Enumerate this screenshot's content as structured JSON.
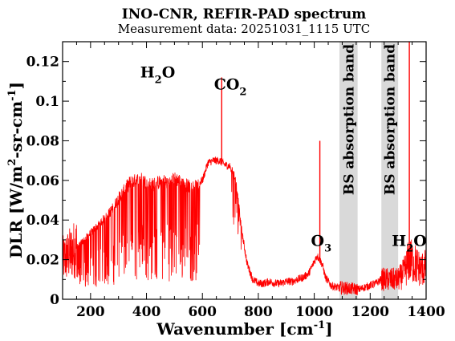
{
  "chart_data": {
    "type": "line",
    "title": "INO-CNR, REFIR-PAD spectrum",
    "subtitle": "Measurement data: 20251031_1115 UTC",
    "xlabel": "Wavenumber [cm-1]",
    "ylabel": "DLR [W/m2-sr-cm-1]",
    "xlim": [
      100,
      1400
    ],
    "ylim": [
      0,
      0.13
    ],
    "xticks": [
      200,
      400,
      600,
      800,
      1000,
      1200,
      1400
    ],
    "xtick_labels": [
      "200",
      "400",
      "600",
      "800",
      "1000",
      "1200",
      "1400"
    ],
    "yticks": [
      0,
      0.02,
      0.04,
      0.06,
      0.08,
      0.1,
      0.12
    ],
    "ytick_labels": [
      "0",
      "0.02",
      "0.04",
      "0.06",
      "0.08",
      "0.1",
      "0.12"
    ],
    "grid": false,
    "line_color": "#ff0000",
    "band_color": "#d9d9d9",
    "series": [
      {
        "x": [
          100,
          120,
          140,
          160,
          180,
          200,
          220,
          240,
          260,
          280,
          300,
          320,
          340,
          360,
          380,
          400,
          420,
          440,
          460,
          480,
          500,
          520,
          540,
          560,
          580,
          600,
          620,
          640,
          660,
          680,
          700,
          720,
          740,
          760,
          780,
          800,
          820,
          840,
          860,
          880,
          900,
          920,
          940,
          960,
          980,
          1000,
          1010,
          1020,
          1030,
          1040,
          1060,
          1080,
          1160,
          1180,
          1200,
          1220,
          1240,
          1300,
          1320,
          1340,
          1360,
          1380,
          1400
        ],
        "y": [
          0.02,
          0.022,
          0.025,
          0.028,
          0.031,
          0.034,
          0.037,
          0.04,
          0.043,
          0.047,
          0.052,
          0.056,
          0.06,
          0.061,
          0.062,
          0.06,
          0.059,
          0.06,
          0.061,
          0.06,
          0.062,
          0.061,
          0.059,
          0.058,
          0.058,
          0.06,
          0.069,
          0.07,
          0.07,
          0.068,
          0.067,
          0.06,
          0.035,
          0.018,
          0.01,
          0.008,
          0.008,
          0.009,
          0.008,
          0.008,
          0.009,
          0.009,
          0.01,
          0.011,
          0.013,
          0.019,
          0.022,
          0.02,
          0.017,
          0.011,
          0.007,
          0.006,
          0.005,
          0.006,
          0.007,
          0.008,
          0.01,
          0.01,
          0.013,
          0.02,
          0.018,
          0.015,
          0.016
        ]
      }
    ],
    "spikes": [
      {
        "x": 669,
        "y": 0.112
      },
      {
        "x": 1020,
        "y": 0.08
      },
      {
        "x": 1340,
        "y": 0.13
      }
    ],
    "shaded_bands": [
      {
        "x0": 1090,
        "x1": 1155,
        "label": "BS absorption band"
      },
      {
        "x0": 1240,
        "x1": 1300,
        "label": "BS absorption band"
      }
    ],
    "annotations": [
      {
        "base": "H",
        "sub": "2",
        "rest": "O",
        "x": 440,
        "y": 0.112
      },
      {
        "base": "CO",
        "sub": "2",
        "rest": "",
        "x": 700,
        "y": 0.106
      },
      {
        "base": "O",
        "sub": "3",
        "rest": "",
        "x": 1025,
        "y": 0.027
      },
      {
        "base": "H",
        "sub": "2",
        "rest": "O",
        "x": 1340,
        "y": 0.027
      }
    ]
  }
}
